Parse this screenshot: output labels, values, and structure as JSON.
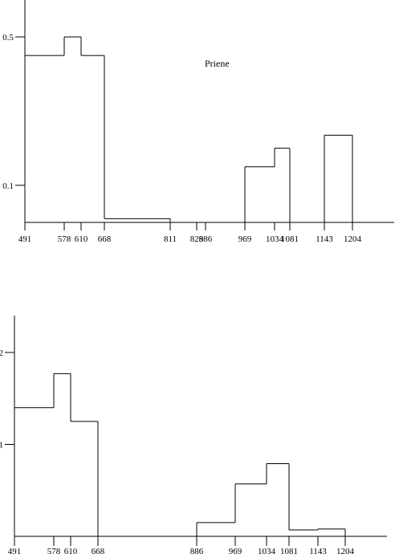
{
  "chart_data": [
    {
      "type": "histogram",
      "annotation": "Priene",
      "x_ticks": [
        491,
        578,
        610,
        668,
        811,
        829,
        886,
        969,
        1034,
        1081,
        1143,
        1204
      ],
      "x_tick_labels": [
        "491",
        "578",
        "610",
        "668",
        "811",
        "829",
        "886",
        "969",
        "1034",
        "1081",
        "1143",
        "1204"
      ],
      "y_ticks": [
        0.1,
        0.5
      ],
      "y_tick_labels": [
        "0.1",
        "0.5"
      ],
      "ylim": [
        0,
        0.6
      ],
      "bins": [
        {
          "x0": 491,
          "x1": 578,
          "value": 0.45
        },
        {
          "x0": 578,
          "x1": 610,
          "value": 0.5
        },
        {
          "x0": 610,
          "x1": 668,
          "value": 0.45
        },
        {
          "x0": 668,
          "x1": 811,
          "value": 0.01
        },
        {
          "x0": 811,
          "x1": 969,
          "value": 0
        },
        {
          "x0": 969,
          "x1": 1034,
          "value": 0.15
        },
        {
          "x0": 1034,
          "x1": 1081,
          "value": 0.2
        },
        {
          "x0": 1081,
          "x1": 1143,
          "value": 0
        },
        {
          "x0": 1143,
          "x1": 1204,
          "value": 0.235
        }
      ]
    },
    {
      "type": "histogram",
      "x_ticks": [
        491,
        578,
        610,
        668,
        886,
        969,
        1034,
        1081,
        1143,
        1204
      ],
      "x_tick_labels": [
        "491",
        "578",
        "610",
        "668",
        "886",
        "969",
        "1034",
        "1081",
        "1143",
        "1204"
      ],
      "y_ticks": [
        1,
        2
      ],
      "y_tick_labels": [
        "1",
        "2"
      ],
      "ylim": [
        0,
        2.4
      ],
      "bins": [
        {
          "x0": 491,
          "x1": 578,
          "value": 1.4
        },
        {
          "x0": 578,
          "x1": 610,
          "value": 1.77
        },
        {
          "x0": 610,
          "x1": 668,
          "value": 1.25
        },
        {
          "x0": 668,
          "x1": 886,
          "value": 0
        },
        {
          "x0": 886,
          "x1": 969,
          "value": 0.15
        },
        {
          "x0": 969,
          "x1": 1034,
          "value": 0.57
        },
        {
          "x0": 1034,
          "x1": 1081,
          "value": 0.79
        },
        {
          "x0": 1081,
          "x1": 1143,
          "value": 0.07
        },
        {
          "x0": 1143,
          "x1": 1204,
          "value": 0.08
        }
      ]
    }
  ]
}
